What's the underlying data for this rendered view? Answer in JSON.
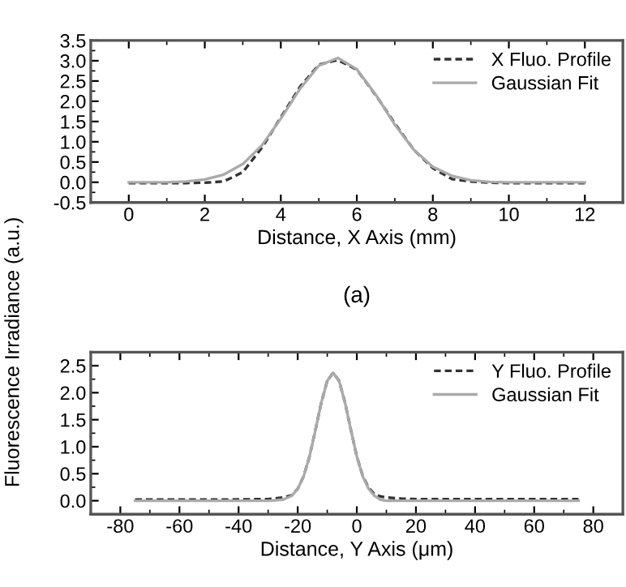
{
  "chart_data": [
    {
      "type": "line",
      "xlabel": "Distance, X Axis (mm)",
      "ylabel": "Fluorescence Irradiance (a.u.)",
      "annotations": [
        "(a)"
      ],
      "legend": "top right",
      "x": [
        0,
        0.5,
        1,
        1.5,
        2,
        2.5,
        3,
        3.5,
        4,
        4.5,
        5,
        5.5,
        6,
        6.5,
        7,
        7.5,
        8,
        8.5,
        9,
        9.5,
        10,
        10.5,
        11,
        11.5,
        12
      ],
      "series": [
        {
          "name": "X Fluo. Profile",
          "color": "#333333",
          "line_style": "dashed",
          "values": [
            -0.02,
            -0.02,
            -0.02,
            -0.02,
            -0.01,
            0.02,
            0.25,
            0.85,
            1.6,
            2.35,
            2.9,
            3.02,
            2.78,
            2.15,
            1.45,
            0.8,
            0.35,
            0.08,
            0.02,
            -0.01,
            -0.02,
            -0.02,
            -0.02,
            -0.02,
            -0.02
          ]
        },
        {
          "name": "Gaussian Fit",
          "color": "#aaaaaa",
          "line_style": "solid",
          "values": [
            0.0,
            0.0,
            0.0,
            0.02,
            0.07,
            0.19,
            0.45,
            0.91,
            1.57,
            2.3,
            2.88,
            3.07,
            2.79,
            2.16,
            1.42,
            0.8,
            0.38,
            0.16,
            0.05,
            0.01,
            0.0,
            0.0,
            0.0,
            0.0,
            0.0
          ]
        }
      ],
      "xlim": [
        -1,
        13
      ],
      "ylim": [
        -0.5,
        3.5
      ],
      "xticks": [
        0,
        2,
        4,
        6,
        8,
        10,
        12
      ],
      "yticks": [
        -0.5,
        {
          "value": 0,
          "label": "0.0"
        },
        0.5,
        {
          "value": 1,
          "label": "1.0"
        },
        1.5,
        {
          "value": 2,
          "label": "2.0"
        },
        2.5,
        {
          "value": 3,
          "label": "3.0"
        },
        3.5
      ]
    },
    {
      "type": "line",
      "xlabel": "Distance, Y Axis (μm)",
      "legend": "top right",
      "x": [
        -75,
        -60,
        -45,
        -30,
        -25,
        -22,
        -20,
        -18,
        -16,
        -14,
        -12,
        -10,
        -8,
        -6,
        -4,
        -2,
        0,
        2,
        4,
        6,
        8,
        10,
        15,
        20,
        30,
        45,
        60,
        75
      ],
      "series": [
        {
          "name": "Y Fluo. Profile",
          "color": "#333333",
          "line_style": "dashed",
          "values": [
            0.02,
            0.02,
            0.02,
            0.03,
            0.06,
            0.1,
            0.22,
            0.45,
            0.82,
            1.31,
            1.82,
            2.22,
            2.37,
            2.22,
            1.82,
            1.31,
            0.82,
            0.46,
            0.24,
            0.12,
            0.08,
            0.06,
            0.04,
            0.03,
            0.03,
            0.03,
            0.03,
            0.03
          ]
        },
        {
          "name": "Gaussian Fit",
          "color": "#aaaaaa",
          "line_style": "solid",
          "values": [
            0.0,
            0.0,
            0.0,
            0.0,
            0.02,
            0.09,
            0.22,
            0.45,
            0.82,
            1.31,
            1.82,
            2.22,
            2.37,
            2.22,
            1.82,
            1.31,
            0.82,
            0.45,
            0.22,
            0.09,
            0.02,
            0.0,
            0.0,
            0.0,
            0.0,
            0.0,
            0.0,
            0.0
          ]
        }
      ],
      "xlim": [
        -90,
        90
      ],
      "ylim": [
        -0.25,
        2.75
      ],
      "xticks": [
        -80,
        -60,
        -40,
        -20,
        0,
        20,
        40,
        60,
        80
      ],
      "yticks": [
        {
          "value": 0,
          "label": "0.0"
        },
        0.5,
        {
          "value": 1,
          "label": "1.0"
        },
        1.5,
        {
          "value": 2,
          "label": "2.0"
        },
        2.5
      ]
    }
  ]
}
